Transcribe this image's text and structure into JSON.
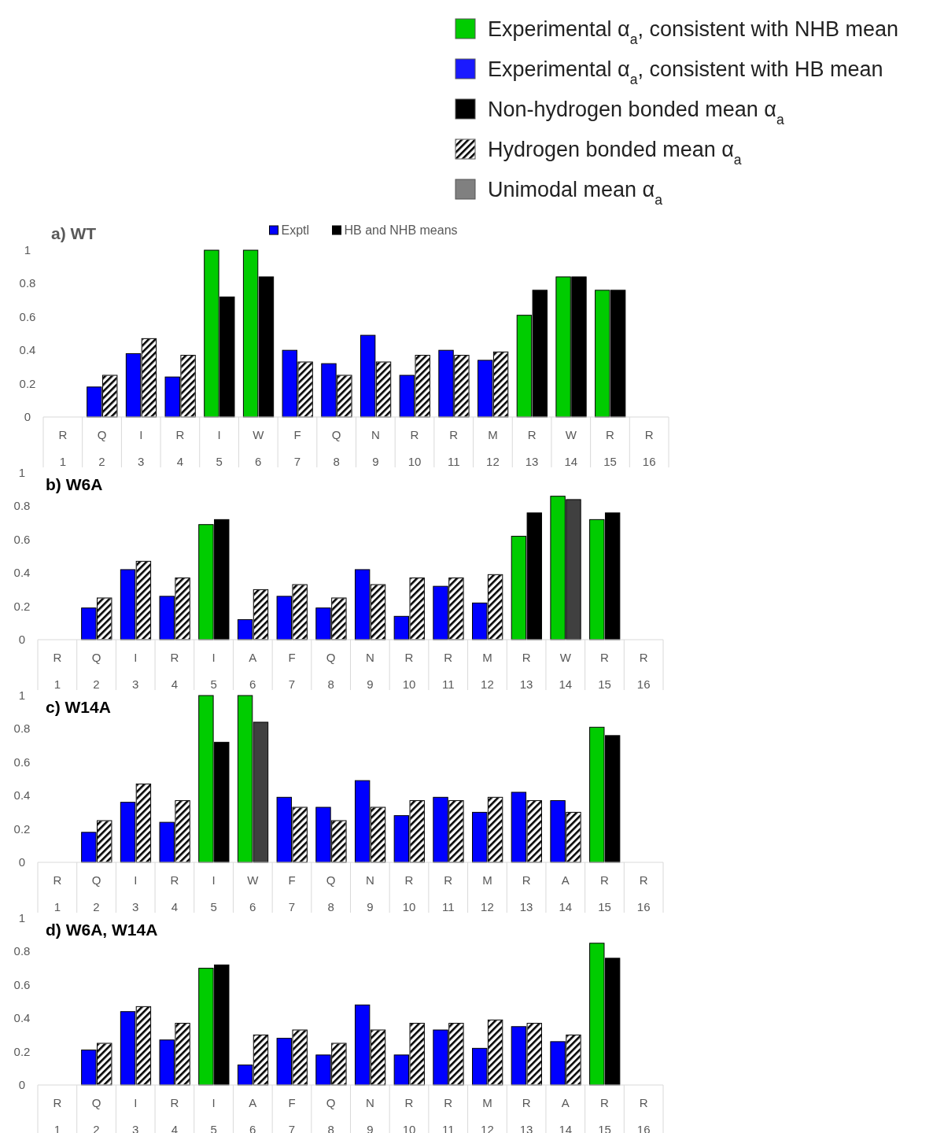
{
  "chart_data": [
    {
      "type": "other",
      "categories": [
        "Experimental α$_{a}$, consistent with NHB mean",
        "Experimental α$_{a}$, consistent with HB mean",
        "Non-hydrogen bonded mean α$_{a}$",
        "Hydrogen bonded mean α$_{a}$",
        "Unimodal mean α$_{a}$"
      ],
      "colors": [
        "#00cc00",
        "#1a1aff",
        "#000000",
        "#ffffff",
        "#808080"
      ]
    },
    {
      "type": "bar",
      "title": "a) WT",
      "legend": "top",
      "ylim": [
        0,
        1
      ],
      "yticks": [
        0,
        0.2,
        0.4,
        0.6,
        0.8,
        1
      ],
      "categories": [
        "R 1",
        "Q 2",
        "I 3",
        "R 4",
        "I 5",
        "W 6",
        "F 7",
        "Q 8",
        "N 9",
        "R 10",
        "R 11",
        "M 12",
        "R 13",
        "W 14",
        "R 15",
        "R 16"
      ],
      "series": [
        {
          "name": "Exptl",
          "color": "#0000ff",
          "values": [
            null,
            0.18,
            0.38,
            0.24,
            1,
            1,
            0.4,
            0.32,
            0.49,
            0.25,
            0.4,
            0.34,
            0.61,
            0.84,
            0.76,
            null
          ],
          "colors": [
            null,
            "#0000ff",
            "#0000ff",
            "#0000ff",
            "#00cc00",
            "#00cc00",
            "#0000ff",
            "#0000ff",
            "#0000ff",
            "#0000ff",
            "#0000ff",
            "#0000ff",
            "#00cc00",
            "#00cc00",
            "#00cc00",
            null
          ]
        },
        {
          "name": "HB and NHB means",
          "color": "#000000",
          "values": [
            null,
            0.25,
            0.47,
            0.37,
            0.72,
            0.84,
            0.33,
            0.25,
            0.33,
            0.37,
            0.37,
            0.39,
            0.76,
            0.84,
            0.76,
            null
          ],
          "colors": [
            null,
            "#ffffff",
            "#ffffff",
            "#ffffff",
            "#000000",
            "#000000",
            "#ffffff",
            "#ffffff",
            "#ffffff",
            "#ffffff",
            "#ffffff",
            "#ffffff",
            "#000000",
            "#000000",
            "#000000",
            null
          ]
        }
      ]
    },
    {
      "type": "bar",
      "title": "b) W6A",
      "ylim": [
        0,
        1
      ],
      "yticks": [
        0,
        0.2,
        0.4,
        0.6,
        0.8,
        1
      ],
      "categories": [
        "R 1",
        "Q 2",
        "I 3",
        "R 4",
        "I 5",
        "A 6",
        "F 7",
        "Q 8",
        "N 9",
        "R 10",
        "R 11",
        "M 12",
        "R 13",
        "W 14",
        "R 15",
        "R 16"
      ],
      "series": [
        {
          "values": [
            null,
            0.19,
            0.42,
            0.26,
            0.69,
            0.12,
            0.26,
            0.19,
            0.42,
            0.14,
            0.32,
            0.22,
            0.62,
            0.86,
            0.72,
            null
          ],
          "colors": [
            null,
            "#0000ff",
            "#0000ff",
            "#0000ff",
            "#00cc00",
            "#0000ff",
            "#0000ff",
            "#0000ff",
            "#0000ff",
            "#0000ff",
            "#0000ff",
            "#0000ff",
            "#00cc00",
            "#00cc00",
            "#00cc00",
            null
          ]
        },
        {
          "values": [
            null,
            0.25,
            0.47,
            0.37,
            0.72,
            0.3,
            0.33,
            0.25,
            0.33,
            0.37,
            0.37,
            0.39,
            0.76,
            0.84,
            0.76,
            null
          ],
          "colors": [
            null,
            "#ffffff",
            "#ffffff",
            "#ffffff",
            "#000000",
            "#ffffff",
            "#ffffff",
            "#ffffff",
            "#ffffff",
            "#ffffff",
            "#ffffff",
            "#ffffff",
            "#000000",
            "#404040",
            "#000000",
            null
          ]
        }
      ]
    },
    {
      "type": "bar",
      "title": "c) W14A",
      "ylim": [
        0,
        1
      ],
      "yticks": [
        0,
        0.2,
        0.4,
        0.6,
        0.8,
        1
      ],
      "categories": [
        "R 1",
        "Q 2",
        "I 3",
        "R 4",
        "I 5",
        "W 6",
        "F 7",
        "Q 8",
        "N 9",
        "R 10",
        "R 11",
        "M 12",
        "R 13",
        "A 14",
        "R 15",
        "R 16"
      ],
      "series": [
        {
          "values": [
            null,
            0.18,
            0.36,
            0.24,
            1,
            1,
            0.39,
            0.33,
            0.49,
            0.28,
            0.39,
            0.3,
            0.42,
            0.37,
            0.81,
            null
          ],
          "colors": [
            null,
            "#0000ff",
            "#0000ff",
            "#0000ff",
            "#00cc00",
            "#00cc00",
            "#0000ff",
            "#0000ff",
            "#0000ff",
            "#0000ff",
            "#0000ff",
            "#0000ff",
            "#0000ff",
            "#0000ff",
            "#00cc00",
            null
          ]
        },
        {
          "values": [
            null,
            0.25,
            0.47,
            0.37,
            0.72,
            0.84,
            0.33,
            0.25,
            0.33,
            0.37,
            0.37,
            0.39,
            0.37,
            0.3,
            0.76,
            null
          ],
          "colors": [
            null,
            "#ffffff",
            "#ffffff",
            "#ffffff",
            "#000000",
            "#404040",
            "#ffffff",
            "#ffffff",
            "#ffffff",
            "#ffffff",
            "#ffffff",
            "#ffffff",
            "#ffffff",
            "#ffffff",
            "#000000",
            null
          ]
        }
      ]
    },
    {
      "type": "bar",
      "title": "d) W6A, W14A",
      "ylim": [
        0,
        1
      ],
      "yticks": [
        0,
        0.2,
        0.4,
        0.6,
        0.8,
        1
      ],
      "categories": [
        "R 1",
        "Q 2",
        "I 3",
        "R 4",
        "I 5",
        "A 6",
        "F 7",
        "Q 8",
        "N 9",
        "R 10",
        "R 11",
        "M 12",
        "R 13",
        "A 14",
        "R 15",
        "R 16"
      ],
      "series": [
        {
          "values": [
            null,
            0.21,
            0.44,
            0.27,
            0.7,
            0.12,
            0.28,
            0.18,
            0.48,
            0.18,
            0.33,
            0.22,
            0.35,
            0.26,
            0.85,
            null
          ],
          "colors": [
            null,
            "#0000ff",
            "#0000ff",
            "#0000ff",
            "#00cc00",
            "#0000ff",
            "#0000ff",
            "#0000ff",
            "#0000ff",
            "#0000ff",
            "#0000ff",
            "#0000ff",
            "#0000ff",
            "#0000ff",
            "#00cc00",
            null
          ]
        },
        {
          "values": [
            null,
            0.25,
            0.47,
            0.37,
            0.72,
            0.3,
            0.33,
            0.25,
            0.33,
            0.37,
            0.37,
            0.39,
            0.37,
            0.3,
            0.76,
            null
          ],
          "colors": [
            null,
            "#ffffff",
            "#ffffff",
            "#ffffff",
            "#000000",
            "#ffffff",
            "#ffffff",
            "#ffffff",
            "#ffffff",
            "#ffffff",
            "#ffffff",
            "#ffffff",
            "#ffffff",
            "#ffffff",
            "#000000",
            null
          ]
        }
      ]
    }
  ]
}
